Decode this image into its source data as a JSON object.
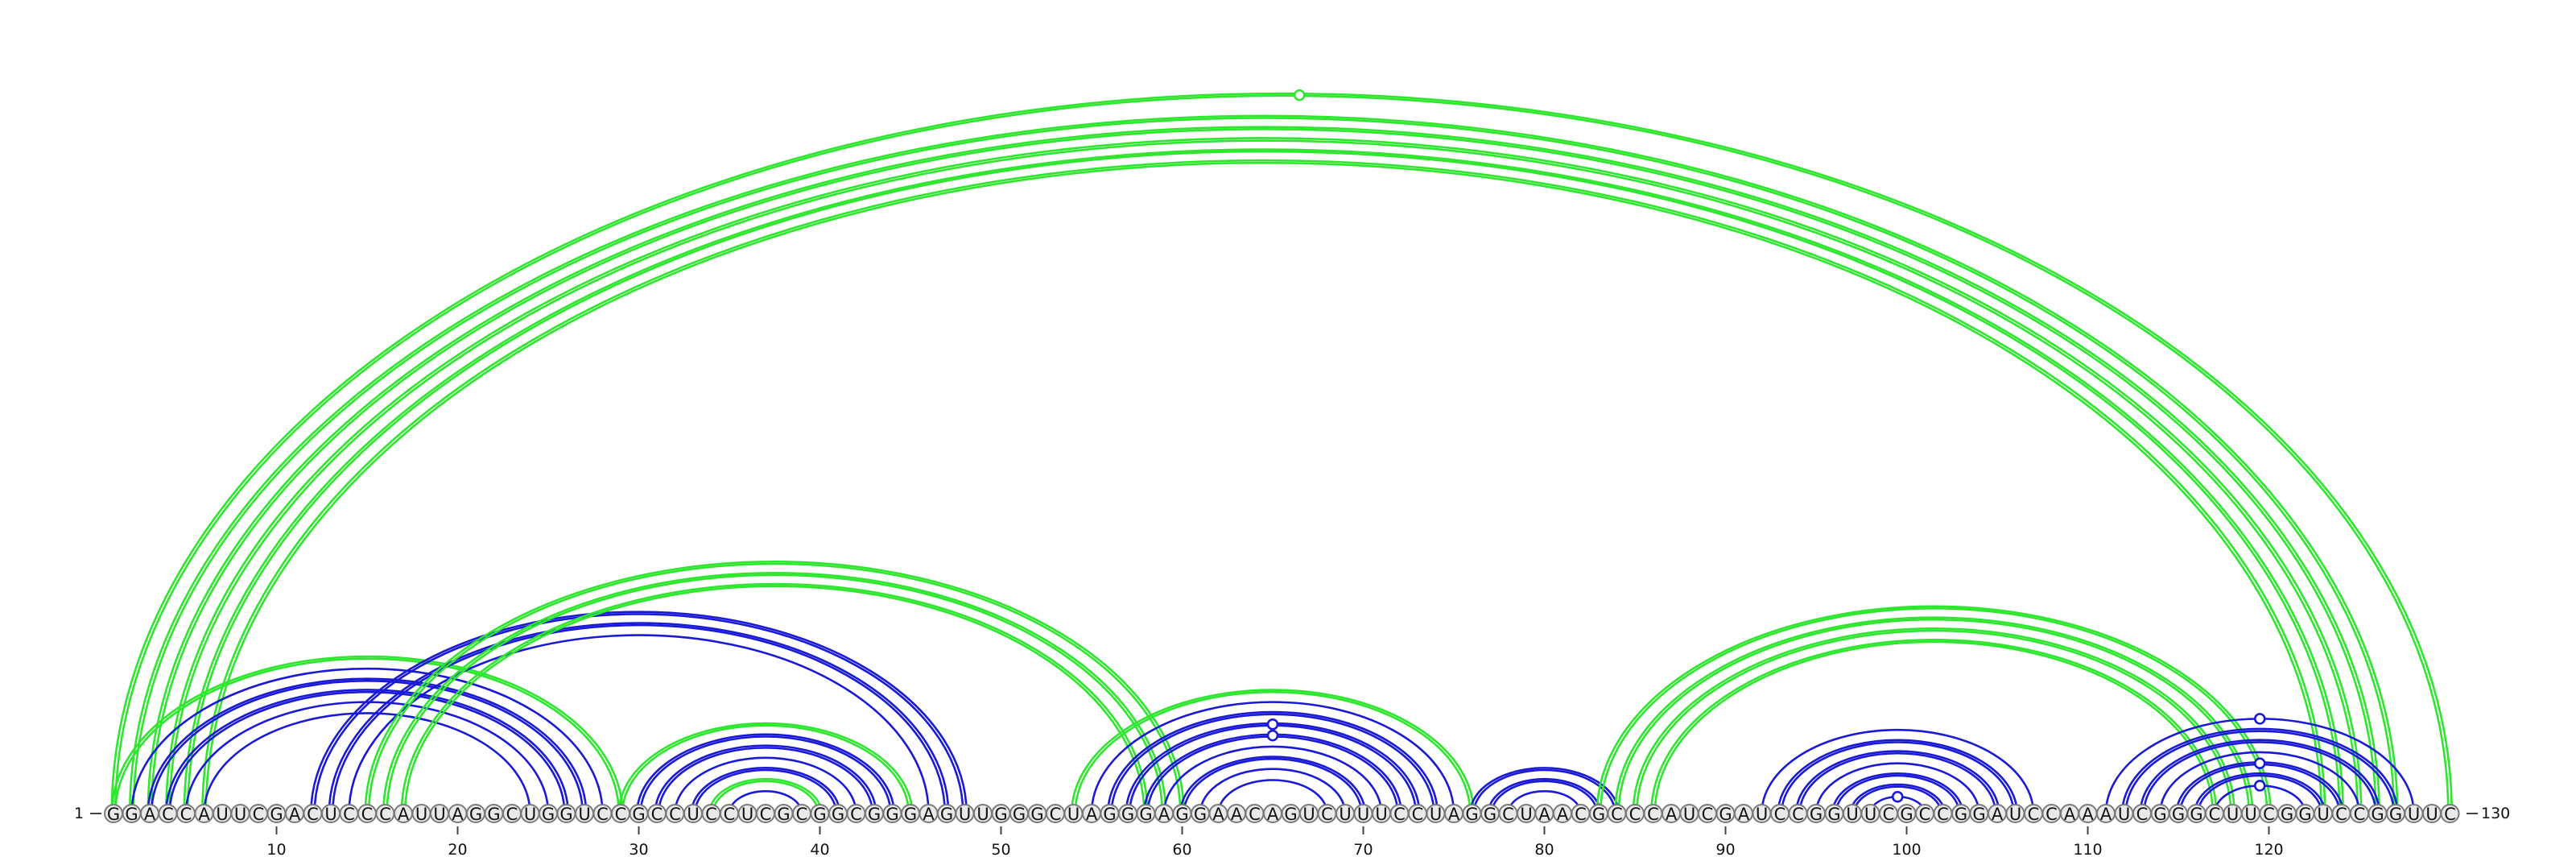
{
  "sequence": "GGACCAUUCGACUCCCAUUAGGCUGGUCCGCCUCCUCGCGGCGGGAGUUGGGCUAGGGAGGAACAGUCUUUCCUAGGCUAACGCCCAUCGAUCCGGUUCGCCGGAUCCAAAUCGGGCUUCGGUCCGGUUC",
  "labels": {
    "start": "1",
    "end": "130"
  },
  "ticks": [
    {
      "position": 10,
      "label": "10"
    },
    {
      "position": 20,
      "label": "20"
    },
    {
      "position": 30,
      "label": "30"
    },
    {
      "position": 40,
      "label": "40"
    },
    {
      "position": 50,
      "label": "50"
    },
    {
      "position": 60,
      "label": "60"
    },
    {
      "position": 70,
      "label": "70"
    },
    {
      "position": 80,
      "label": "80"
    },
    {
      "position": 90,
      "label": "90"
    },
    {
      "position": 100,
      "label": "100"
    },
    {
      "position": 110,
      "label": "110"
    },
    {
      "position": 120,
      "label": "120"
    }
  ],
  "colors": {
    "blue": "#1a1ad6",
    "green": "#2ee62e"
  },
  "arcs": [
    {
      "i": 1,
      "j": 130,
      "color": "green",
      "lines": 2
    },
    {
      "i": 2,
      "j": 127,
      "color": "green",
      "lines": 2
    },
    {
      "i": 3,
      "j": 126,
      "color": "green",
      "lines": 2
    },
    {
      "i": 4,
      "j": 125,
      "color": "green",
      "lines": 2
    },
    {
      "i": 5,
      "j": 124,
      "color": "green",
      "lines": 2
    },
    {
      "i": 6,
      "j": 123,
      "color": "green",
      "lines": 2
    },
    {
      "i": 1,
      "j": 29,
      "color": "green",
      "lines": 2
    },
    {
      "i": 2,
      "j": 28,
      "color": "blue",
      "lines": 1
    },
    {
      "i": 3,
      "j": 27,
      "color": "blue",
      "lines": 2
    },
    {
      "i": 4,
      "j": 26,
      "color": "blue",
      "lines": 2
    },
    {
      "i": 5,
      "j": 25,
      "color": "blue",
      "lines": 1
    },
    {
      "i": 6,
      "j": 24,
      "color": "blue",
      "lines": 1
    },
    {
      "i": 12,
      "j": 48,
      "color": "blue",
      "lines": 2
    },
    {
      "i": 13,
      "j": 47,
      "color": "blue",
      "lines": 2
    },
    {
      "i": 14,
      "j": 46,
      "color": "blue",
      "lines": 1
    },
    {
      "i": 15,
      "j": 60,
      "color": "green",
      "lines": 2
    },
    {
      "i": 16,
      "j": 59,
      "color": "green",
      "lines": 2
    },
    {
      "i": 17,
      "j": 58,
      "color": "green",
      "lines": 2
    },
    {
      "i": 29,
      "j": 45,
      "color": "green",
      "lines": 2
    },
    {
      "i": 30,
      "j": 44,
      "color": "blue",
      "lines": 2
    },
    {
      "i": 31,
      "j": 43,
      "color": "blue",
      "lines": 2
    },
    {
      "i": 32,
      "j": 42,
      "color": "blue",
      "lines": 1
    },
    {
      "i": 33,
      "j": 41,
      "color": "blue",
      "lines": 2
    },
    {
      "i": 34,
      "j": 40,
      "color": "green",
      "lines": 2
    },
    {
      "i": 35,
      "j": 39,
      "color": "blue",
      "lines": 1
    },
    {
      "i": 54,
      "j": 76,
      "color": "green",
      "lines": 2
    },
    {
      "i": 55,
      "j": 75,
      "color": "blue",
      "lines": 1
    },
    {
      "i": 56,
      "j": 74,
      "color": "blue",
      "lines": 2
    },
    {
      "i": 57,
      "j": 73,
      "color": "blue",
      "lines": 2,
      "marker": true
    },
    {
      "i": 58,
      "j": 72,
      "color": "blue",
      "lines": 2,
      "marker": true
    },
    {
      "i": 59,
      "j": 71,
      "color": "blue",
      "lines": 1
    },
    {
      "i": 60,
      "j": 70,
      "color": "blue",
      "lines": 2
    },
    {
      "i": 61,
      "j": 69,
      "color": "blue",
      "lines": 1
    },
    {
      "i": 62,
      "j": 68,
      "color": "blue",
      "lines": 1
    },
    {
      "i": 76,
      "j": 84,
      "color": "blue",
      "lines": 2
    },
    {
      "i": 77,
      "j": 83,
      "color": "blue",
      "lines": 2
    },
    {
      "i": 78,
      "j": 82,
      "color": "blue",
      "lines": 1
    },
    {
      "i": 83,
      "j": 120,
      "color": "green",
      "lines": 2
    },
    {
      "i": 84,
      "j": 119,
      "color": "green",
      "lines": 2
    },
    {
      "i": 85,
      "j": 118,
      "color": "green",
      "lines": 2
    },
    {
      "i": 86,
      "j": 117,
      "color": "green",
      "lines": 2
    },
    {
      "i": 92,
      "j": 107,
      "color": "blue",
      "lines": 1
    },
    {
      "i": 93,
      "j": 106,
      "color": "blue",
      "lines": 2
    },
    {
      "i": 94,
      "j": 105,
      "color": "blue",
      "lines": 2
    },
    {
      "i": 95,
      "j": 104,
      "color": "blue",
      "lines": 1
    },
    {
      "i": 96,
      "j": 103,
      "color": "blue",
      "lines": 2
    },
    {
      "i": 97,
      "j": 102,
      "color": "blue",
      "lines": 2
    },
    {
      "i": 98,
      "j": 101,
      "color": "blue",
      "lines": 1,
      "marker": true
    },
    {
      "i": 111,
      "j": 128,
      "color": "blue",
      "lines": 1,
      "marker": true
    },
    {
      "i": 112,
      "j": 127,
      "color": "blue",
      "lines": 2
    },
    {
      "i": 113,
      "j": 126,
      "color": "blue",
      "lines": 2
    },
    {
      "i": 114,
      "j": 125,
      "color": "blue",
      "lines": 1
    },
    {
      "i": 115,
      "j": 124,
      "color": "blue",
      "lines": 2,
      "marker": true
    },
    {
      "i": 116,
      "j": 123,
      "color": "blue",
      "lines": 2
    },
    {
      "i": 117,
      "j": 122,
      "color": "blue",
      "lines": 1,
      "marker": true
    }
  ]
}
